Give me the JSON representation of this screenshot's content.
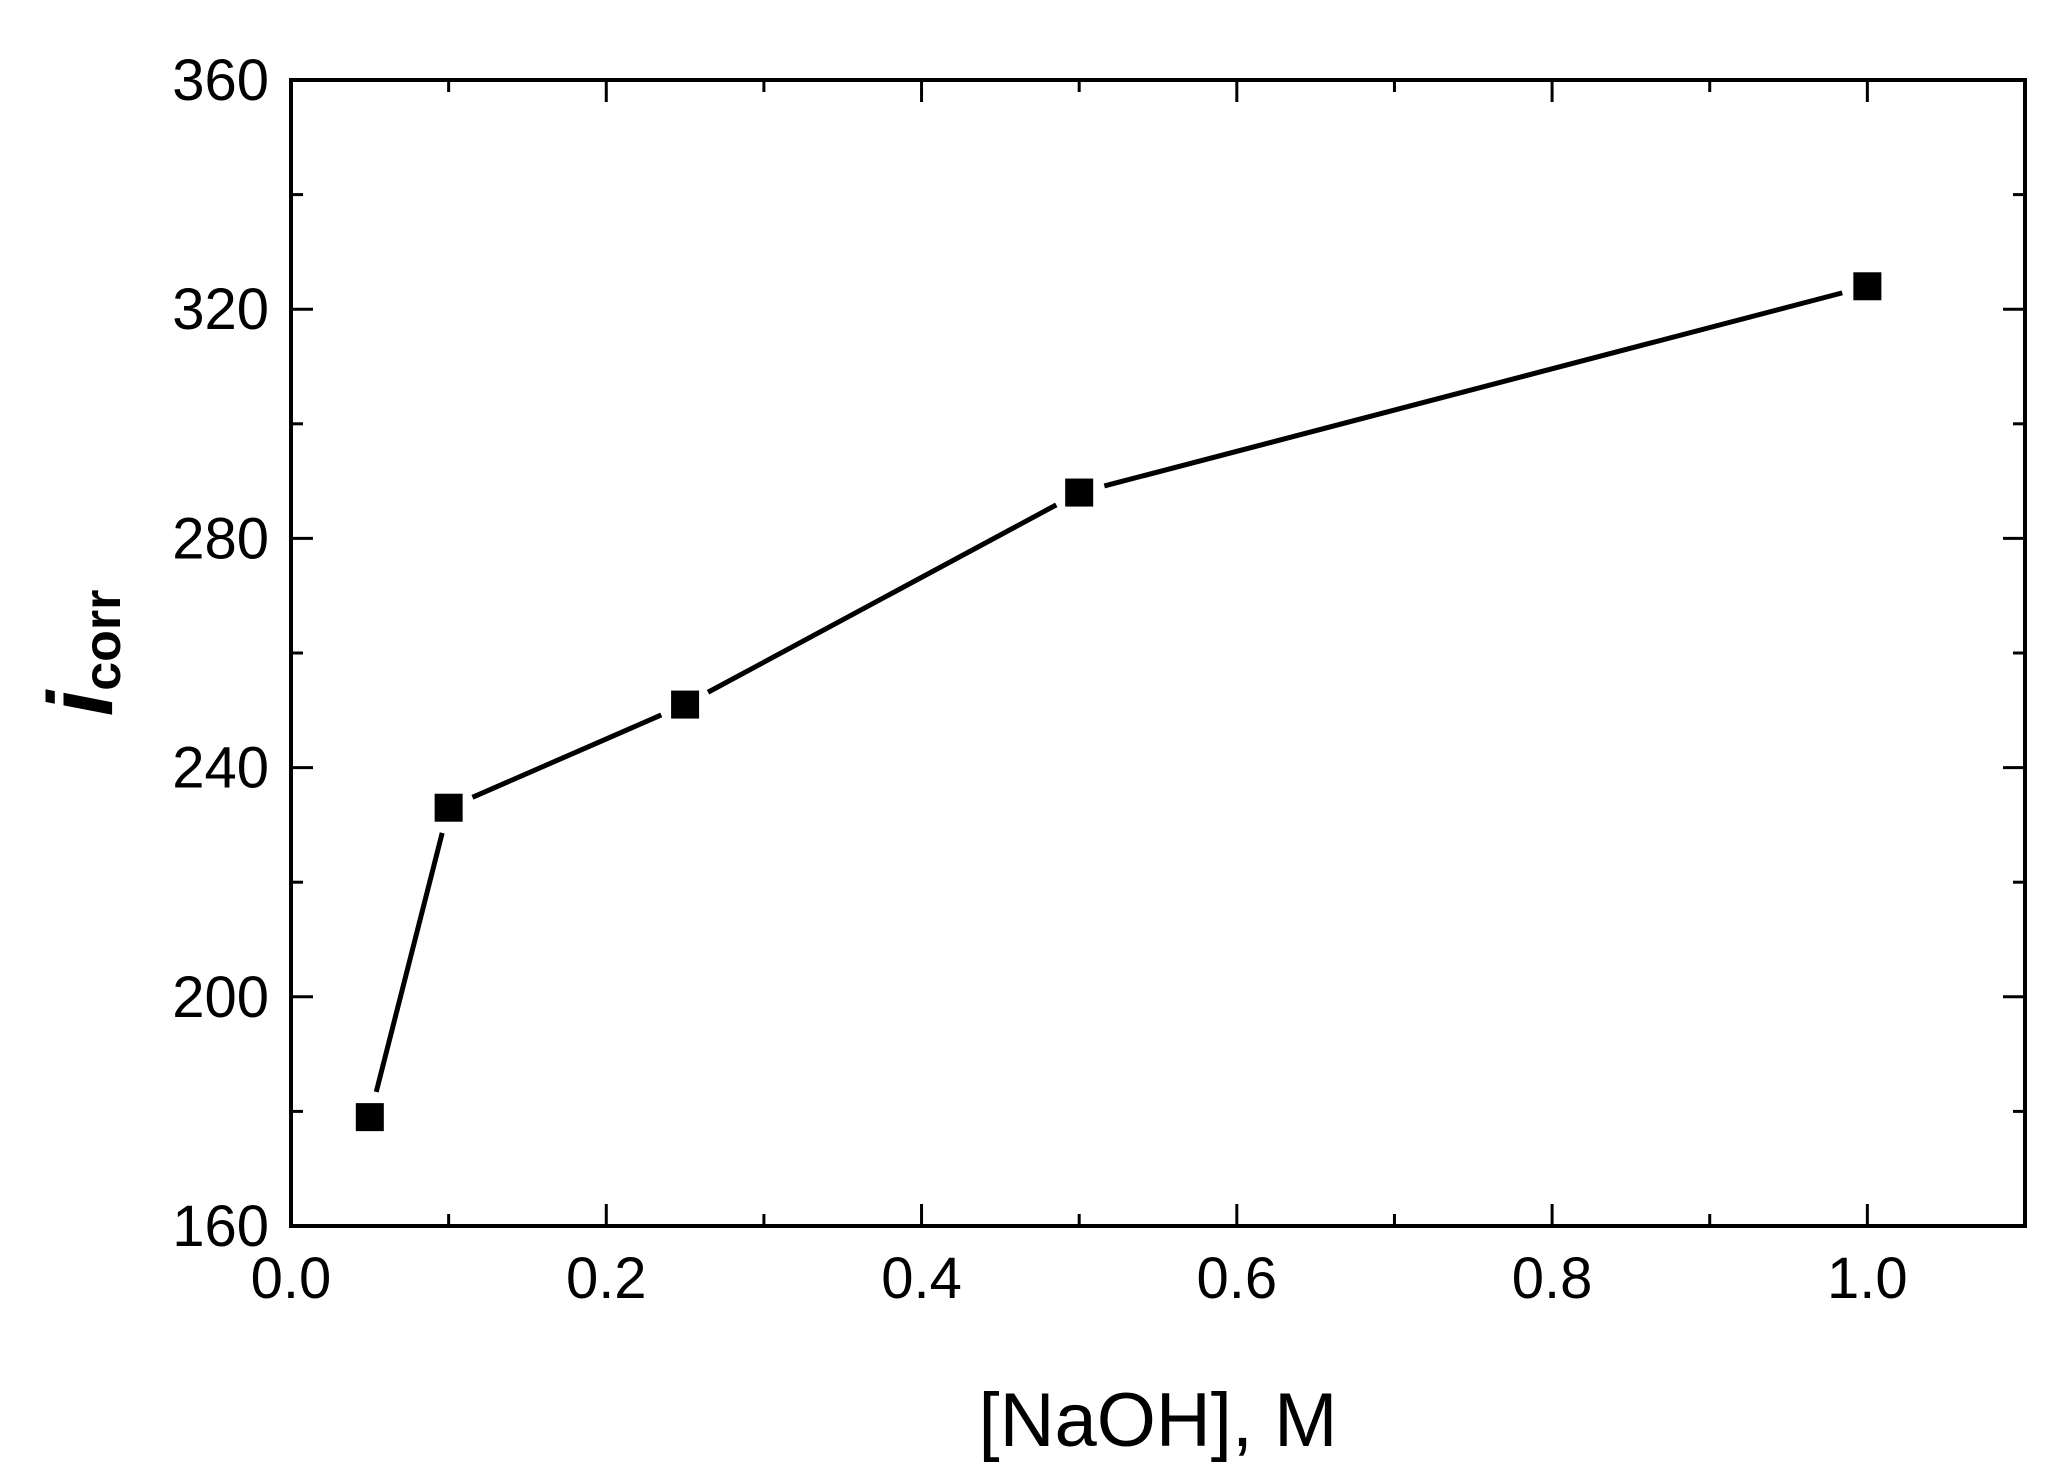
{
  "chart_data": {
    "type": "line",
    "title": "",
    "xlabel": "[NaOH], M",
    "ylabel": {
      "main": "i",
      "subscript": "corr"
    },
    "xlim": [
      0.0,
      1.1
    ],
    "ylim": [
      160,
      360
    ],
    "x_ticks": [
      "0.0",
      "0.2",
      "0.4",
      "0.6",
      "0.8",
      "1.0"
    ],
    "y_ticks": [
      "160",
      "200",
      "240",
      "280",
      "320",
      "360"
    ],
    "grid": false,
    "legend": "none",
    "marker": "square",
    "color": "#000000",
    "series": [
      {
        "x": [
          0.05,
          0.1,
          0.25,
          0.5,
          1.0
        ],
        "values": [
          179,
          233,
          251,
          288,
          324
        ]
      }
    ]
  }
}
